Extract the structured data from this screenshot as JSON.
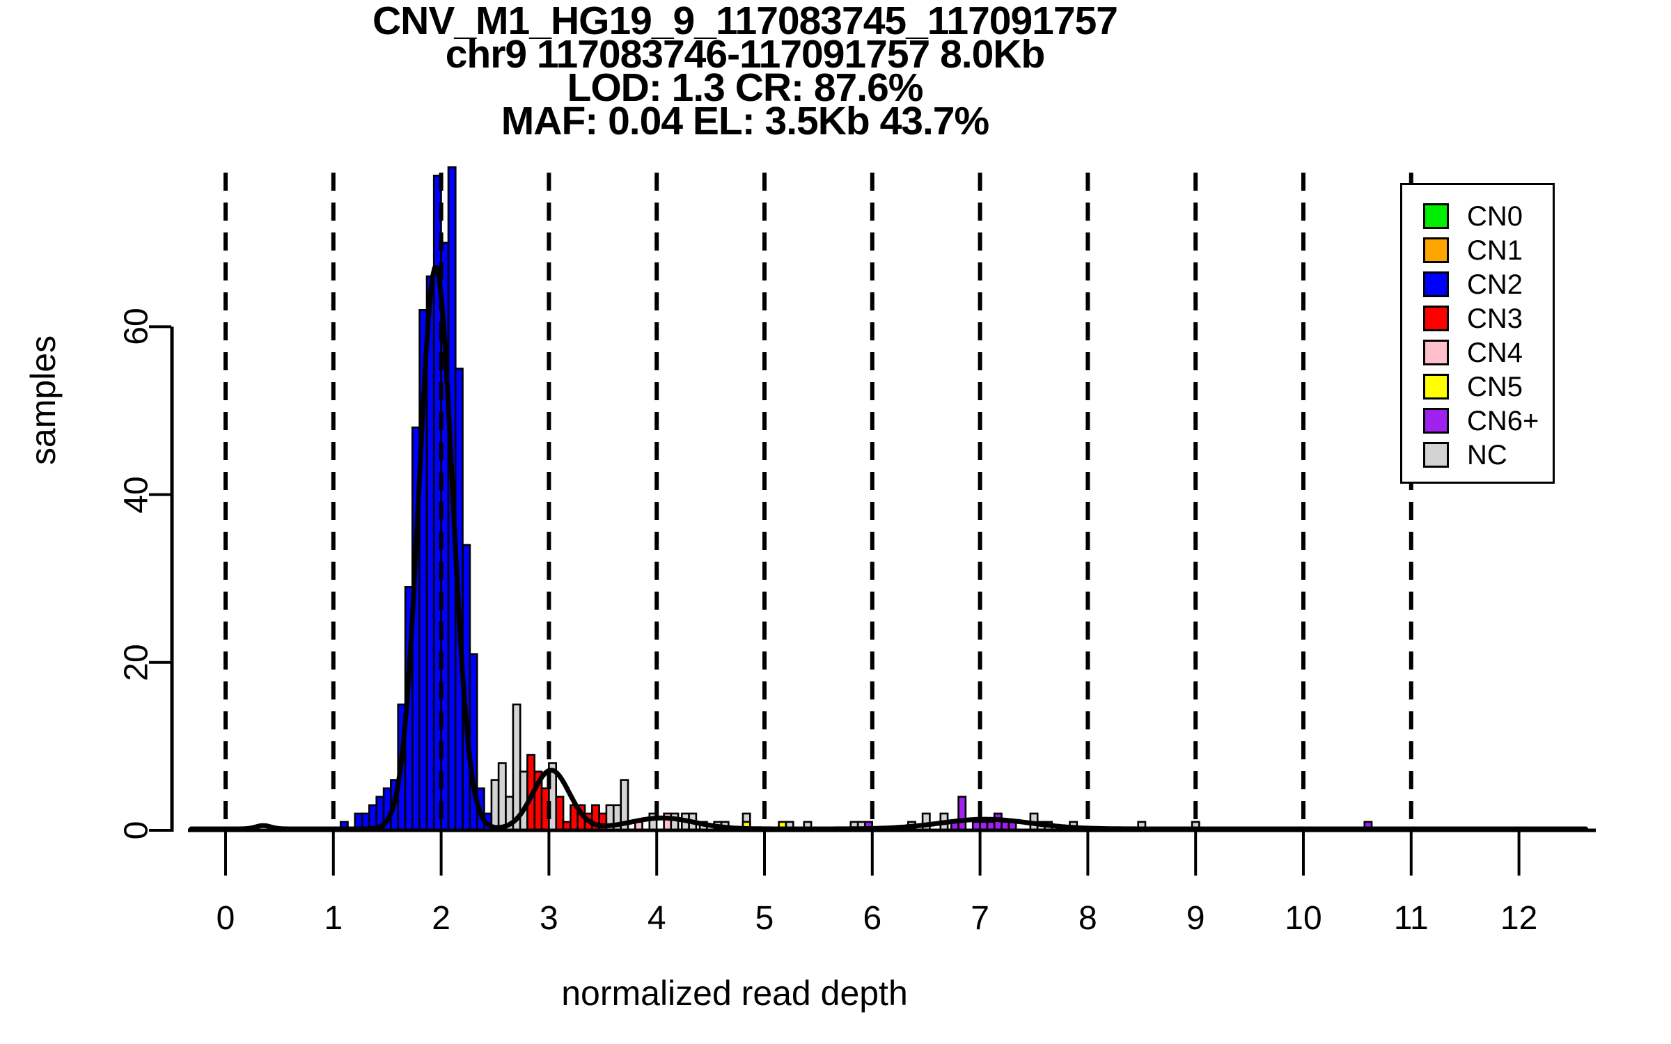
{
  "title": {
    "line1": "CNV_M1_HG19_9_117083745_117091757",
    "line2": "chr9 117083746-117091757 8.0Kb",
    "line3": "LOD: 1.3 CR: 87.6%",
    "line4": "MAF: 0.04 EL: 3.5Kb 43.7%"
  },
  "axes": {
    "xlabel": "normalized read depth",
    "ylabel": "samples",
    "xticks": [
      0,
      1,
      2,
      3,
      4,
      5,
      6,
      7,
      8,
      9,
      10,
      11,
      12
    ],
    "yticks": [
      0,
      20,
      40,
      60
    ]
  },
  "legend": {
    "items": [
      {
        "label": "CN0",
        "color": "#00EE00"
      },
      {
        "label": "CN1",
        "color": "#FFA500"
      },
      {
        "label": "CN2",
        "color": "#0000FF"
      },
      {
        "label": "CN3",
        "color": "#FF0000"
      },
      {
        "label": "CN4",
        "color": "#FFC0CB"
      },
      {
        "label": "CN5",
        "color": "#FFFF00"
      },
      {
        "label": "CN6+",
        "color": "#A020F0"
      },
      {
        "label": "NC",
        "color": "#D3D3D3"
      }
    ]
  },
  "chart_data": {
    "type": "bar",
    "subtype": "histogram-with-density-curve",
    "title": "CNV_M1_HG19_9_117083745_117091757",
    "xlabel": "normalized read depth",
    "ylabel": "samples",
    "xlim": [
      -0.35,
      12.65
    ],
    "ylim": [
      0,
      80
    ],
    "grid": "dashed vertical lines at integers 0-11",
    "legend_position": "top-right",
    "bin_width": 0.0667,
    "colors": {
      "CN0": "#00EE00",
      "CN1": "#FFA500",
      "CN2": "#0000FF",
      "CN3": "#FF0000",
      "CN4": "#FFC0CB",
      "CN5": "#FFFF00",
      "CN6": "#A020F0",
      "NC": "#D3D3D3"
    },
    "gridlines_x": [
      0,
      1,
      2,
      3,
      4,
      5,
      6,
      7,
      8,
      9,
      10,
      11
    ],
    "bars": [
      {
        "x": 1.067,
        "h": 1,
        "c": "CN2"
      },
      {
        "x": 1.2,
        "h": 2,
        "c": "CN2"
      },
      {
        "x": 1.267,
        "h": 2,
        "c": "CN2"
      },
      {
        "x": 1.333,
        "h": 3,
        "c": "CN2"
      },
      {
        "x": 1.4,
        "h": 4,
        "c": "CN2"
      },
      {
        "x": 1.467,
        "h": 5,
        "c": "CN2"
      },
      {
        "x": 1.533,
        "h": 6,
        "c": "CN2"
      },
      {
        "x": 1.6,
        "h": 15,
        "c": "CN2"
      },
      {
        "x": 1.667,
        "h": 29,
        "c": "CN2"
      },
      {
        "x": 1.733,
        "h": 48,
        "c": "CN2"
      },
      {
        "x": 1.8,
        "h": 62,
        "c": "CN2"
      },
      {
        "x": 1.867,
        "h": 66,
        "c": "CN2"
      },
      {
        "x": 1.933,
        "h": 78,
        "c": "CN2"
      },
      {
        "x": 2.0,
        "h": 70,
        "c": "CN2"
      },
      {
        "x": 2.067,
        "h": 79,
        "c": "CN2"
      },
      {
        "x": 2.133,
        "h": 55,
        "c": "CN2"
      },
      {
        "x": 2.2,
        "h": 34,
        "c": "CN2"
      },
      {
        "x": 2.267,
        "h": 21,
        "c": "CN2"
      },
      {
        "x": 2.333,
        "h": 5,
        "c": "CN2"
      },
      {
        "x": 2.4,
        "h": 2,
        "c": "CN2"
      },
      {
        "x": 2.467,
        "h": 6,
        "c": "NC"
      },
      {
        "x": 2.533,
        "h": 8,
        "c": "NC"
      },
      {
        "x": 2.6,
        "h": 4,
        "c": "NC"
      },
      {
        "x": 2.667,
        "h": 15,
        "c": "NC"
      },
      {
        "x": 2.733,
        "h": 7,
        "c": "NC"
      },
      {
        "x": 2.8,
        "h": 9,
        "c": "CN3"
      },
      {
        "x": 2.867,
        "h": 7,
        "c": "CN3"
      },
      {
        "x": 2.933,
        "h": 5,
        "c": "CN3"
      },
      {
        "x": 3.0,
        "h": 8,
        "c": "NC"
      },
      {
        "x": 3.067,
        "h": 4,
        "c": "CN3"
      },
      {
        "x": 3.133,
        "h": 1,
        "c": "CN3"
      },
      {
        "x": 3.2,
        "h": 3,
        "c": "CN3"
      },
      {
        "x": 3.267,
        "h": 3,
        "c": "CN3"
      },
      {
        "x": 3.333,
        "h": 2,
        "c": "CN3"
      },
      {
        "x": 3.4,
        "h": 3,
        "c": "CN3"
      },
      {
        "x": 3.467,
        "h": 2,
        "c": "CN3"
      },
      {
        "x": 3.533,
        "h": 3,
        "c": "NC"
      },
      {
        "x": 3.6,
        "h": 3,
        "c": "NC"
      },
      {
        "x": 3.667,
        "h": 6,
        "c": "NC"
      },
      {
        "x": 3.8,
        "h": 1,
        "c": "CN4"
      },
      {
        "x": 3.933,
        "h": 2,
        "c": "NC"
      },
      {
        "x": 4.067,
        "h": 2,
        "c": "CN4"
      },
      {
        "x": 4.133,
        "h": 2,
        "c": "NC"
      },
      {
        "x": 4.233,
        "h": 2,
        "c": "NC"
      },
      {
        "x": 4.3,
        "h": 2,
        "c": "NC"
      },
      {
        "x": 4.4,
        "h": 1,
        "c": "NC"
      },
      {
        "x": 4.533,
        "h": 1,
        "c": "NC"
      },
      {
        "x": 4.6,
        "h": 1,
        "c": "NC"
      },
      {
        "x": 4.8,
        "h": 2,
        "c": "NC"
      },
      {
        "x": 4.8,
        "h": 1,
        "c": "CN5"
      },
      {
        "x": 5.133,
        "h": 1,
        "c": "CN5"
      },
      {
        "x": 5.2,
        "h": 1,
        "c": "NC"
      },
      {
        "x": 5.367,
        "h": 1,
        "c": "NC"
      },
      {
        "x": 5.8,
        "h": 1,
        "c": "NC"
      },
      {
        "x": 5.867,
        "h": 1,
        "c": "NC"
      },
      {
        "x": 5.933,
        "h": 1,
        "c": "CN6"
      },
      {
        "x": 6.333,
        "h": 1,
        "c": "NC"
      },
      {
        "x": 6.467,
        "h": 2,
        "c": "NC"
      },
      {
        "x": 6.633,
        "h": 2,
        "c": "NC"
      },
      {
        "x": 6.733,
        "h": 1,
        "c": "CN6"
      },
      {
        "x": 6.8,
        "h": 4,
        "c": "CN6"
      },
      {
        "x": 6.933,
        "h": 1,
        "c": "CN6"
      },
      {
        "x": 7.0,
        "h": 1,
        "c": "CN6"
      },
      {
        "x": 7.067,
        "h": 1,
        "c": "CN6"
      },
      {
        "x": 7.133,
        "h": 2,
        "c": "CN6"
      },
      {
        "x": 7.2,
        "h": 1,
        "c": "CN6"
      },
      {
        "x": 7.267,
        "h": 1,
        "c": "CN6"
      },
      {
        "x": 7.467,
        "h": 2,
        "c": "NC"
      },
      {
        "x": 7.533,
        "h": 1,
        "c": "NC"
      },
      {
        "x": 7.6,
        "h": 1,
        "c": "NC"
      },
      {
        "x": 7.833,
        "h": 1,
        "c": "NC"
      },
      {
        "x": 8.467,
        "h": 1,
        "c": "NC"
      },
      {
        "x": 8.967,
        "h": 1,
        "c": "NC"
      },
      {
        "x": 10.567,
        "h": 1,
        "c": "CN6"
      }
    ],
    "density_curve_gaussians": [
      {
        "mu": 0.35,
        "amp": 0.4,
        "sd": 0.07
      },
      {
        "mu": 1.95,
        "amp": 67,
        "sd": 0.155
      },
      {
        "mu": 3.02,
        "amp": 7,
        "sd": 0.17
      },
      {
        "mu": 4.05,
        "amp": 1.3,
        "sd": 0.3
      },
      {
        "mu": 7.05,
        "amp": 1.15,
        "sd": 0.42
      }
    ]
  }
}
